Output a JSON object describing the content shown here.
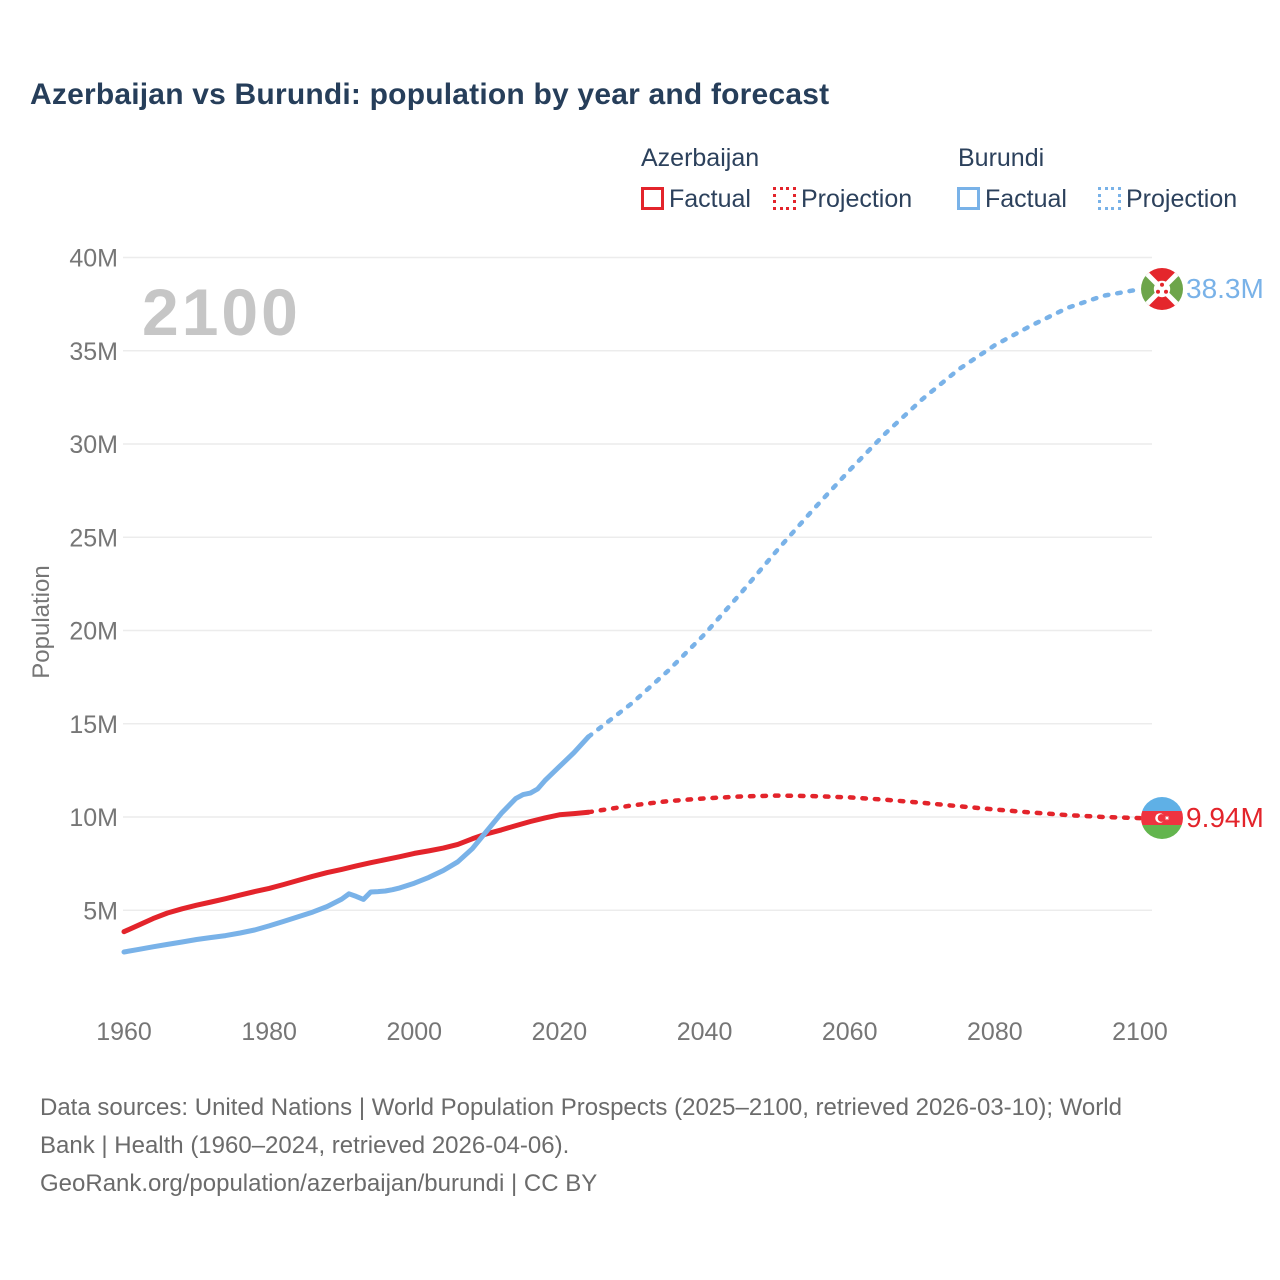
{
  "title": "Azerbaijan vs Burundi: population by year and forecast",
  "watermark": "2100",
  "colors": {
    "azerbaijan": "#e3242b",
    "burundi": "#79b2e8",
    "title_text": "#263e5a",
    "axis_text": "#767676",
    "grid": "#ececec",
    "watermark": "#c6c6c6",
    "footer_text": "#6b6b6b"
  },
  "legend": {
    "groups": [
      {
        "name": "Azerbaijan",
        "color": "#e3242b",
        "items": [
          {
            "label": "Factual",
            "style": "solid"
          },
          {
            "label": "Projection",
            "style": "dotted"
          }
        ]
      },
      {
        "name": "Burundi",
        "color": "#79b2e8",
        "items": [
          {
            "label": "Factual",
            "style": "solid"
          },
          {
            "label": "Projection",
            "style": "dotted"
          }
        ]
      }
    ]
  },
  "chart_data": {
    "type": "line",
    "title": "Azerbaijan vs Burundi: population by year and forecast",
    "xlabel": "",
    "ylabel": "Population",
    "xlim": [
      1960,
      2100
    ],
    "ylim": [
      0,
      42
    ],
    "grid": "horizontal",
    "legend_position": "top-right",
    "x_ticks": [
      1960,
      1980,
      2000,
      2020,
      2040,
      2060,
      2080,
      2100
    ],
    "y_ticks": [
      5,
      10,
      15,
      20,
      25,
      30,
      35,
      40
    ],
    "y_tick_suffix": "M",
    "series": [
      {
        "name": "Azerbaijan Factual",
        "color": "#e3242b",
        "style": "solid",
        "points": [
          [
            1960,
            3.85
          ],
          [
            1962,
            4.2
          ],
          [
            1964,
            4.55
          ],
          [
            1966,
            4.85
          ],
          [
            1968,
            5.08
          ],
          [
            1970,
            5.27
          ],
          [
            1972,
            5.44
          ],
          [
            1974,
            5.62
          ],
          [
            1976,
            5.81
          ],
          [
            1978,
            6.0
          ],
          [
            1980,
            6.17
          ],
          [
            1982,
            6.38
          ],
          [
            1984,
            6.6
          ],
          [
            1986,
            6.82
          ],
          [
            1988,
            7.02
          ],
          [
            1990,
            7.19
          ],
          [
            1992,
            7.38
          ],
          [
            1994,
            7.55
          ],
          [
            1996,
            7.71
          ],
          [
            1998,
            7.87
          ],
          [
            2000,
            8.05
          ],
          [
            2002,
            8.18
          ],
          [
            2004,
            8.33
          ],
          [
            2006,
            8.53
          ],
          [
            2008,
            8.83
          ],
          [
            2010,
            9.1
          ],
          [
            2012,
            9.31
          ],
          [
            2014,
            9.54
          ],
          [
            2016,
            9.76
          ],
          [
            2018,
            9.95
          ],
          [
            2020,
            10.12
          ],
          [
            2022,
            10.18
          ],
          [
            2024,
            10.26
          ]
        ]
      },
      {
        "name": "Azerbaijan Projection",
        "color": "#e3242b",
        "style": "dotted",
        "points": [
          [
            2024,
            10.26
          ],
          [
            2030,
            10.62
          ],
          [
            2035,
            10.85
          ],
          [
            2040,
            11.0
          ],
          [
            2045,
            11.1
          ],
          [
            2050,
            11.15
          ],
          [
            2055,
            11.12
          ],
          [
            2060,
            11.05
          ],
          [
            2065,
            10.92
          ],
          [
            2070,
            10.76
          ],
          [
            2075,
            10.58
          ],
          [
            2080,
            10.4
          ],
          [
            2085,
            10.24
          ],
          [
            2090,
            10.1
          ],
          [
            2095,
            10.0
          ],
          [
            2100,
            9.94
          ]
        ]
      },
      {
        "name": "Burundi Factual",
        "color": "#79b2e8",
        "style": "solid",
        "points": [
          [
            1960,
            2.76
          ],
          [
            1962,
            2.9
          ],
          [
            1964,
            3.04
          ],
          [
            1966,
            3.17
          ],
          [
            1968,
            3.3
          ],
          [
            1970,
            3.43
          ],
          [
            1972,
            3.54
          ],
          [
            1974,
            3.64
          ],
          [
            1976,
            3.78
          ],
          [
            1978,
            3.94
          ],
          [
            1980,
            4.16
          ],
          [
            1982,
            4.4
          ],
          [
            1984,
            4.65
          ],
          [
            1986,
            4.9
          ],
          [
            1988,
            5.2
          ],
          [
            1990,
            5.6
          ],
          [
            1991,
            5.88
          ],
          [
            1992,
            5.74
          ],
          [
            1993,
            5.58
          ],
          [
            1994,
            5.98
          ],
          [
            1995,
            6.0
          ],
          [
            1996,
            6.03
          ],
          [
            1997,
            6.1
          ],
          [
            1998,
            6.2
          ],
          [
            2000,
            6.45
          ],
          [
            2002,
            6.76
          ],
          [
            2004,
            7.13
          ],
          [
            2006,
            7.6
          ],
          [
            2008,
            8.3
          ],
          [
            2010,
            9.25
          ],
          [
            2012,
            10.2
          ],
          [
            2014,
            11.0
          ],
          [
            2015,
            11.2
          ],
          [
            2016,
            11.28
          ],
          [
            2017,
            11.5
          ],
          [
            2018,
            11.95
          ],
          [
            2020,
            12.7
          ],
          [
            2022,
            13.45
          ],
          [
            2024,
            14.3
          ]
        ]
      },
      {
        "name": "Burundi Projection",
        "color": "#79b2e8",
        "style": "dotted",
        "points": [
          [
            2024,
            14.3
          ],
          [
            2030,
            16.1
          ],
          [
            2035,
            17.85
          ],
          [
            2040,
            19.8
          ],
          [
            2045,
            22.0
          ],
          [
            2050,
            24.3
          ],
          [
            2055,
            26.5
          ],
          [
            2060,
            28.6
          ],
          [
            2065,
            30.6
          ],
          [
            2070,
            32.4
          ],
          [
            2075,
            34.0
          ],
          [
            2080,
            35.3
          ],
          [
            2085,
            36.35
          ],
          [
            2090,
            37.3
          ],
          [
            2095,
            37.95
          ],
          [
            2100,
            38.3
          ]
        ]
      }
    ],
    "end_annotations": [
      {
        "series": "Burundi",
        "year": 2100,
        "value": 38.3,
        "label": "38.3M",
        "icon": "burundi-flag-icon"
      },
      {
        "series": "Azerbaijan",
        "year": 2100,
        "value": 9.94,
        "label": "9.94M",
        "icon": "azerbaijan-flag-icon"
      }
    ]
  },
  "footer": {
    "lines": [
      "Data sources: United Nations | World Population Prospects (2025–2100, retrieved 2026-03-10); World",
      "Bank | Health (1960–2024, retrieved 2026-04-06).",
      "GeoRank.org/population/azerbaijan/burundi | CC BY"
    ]
  }
}
